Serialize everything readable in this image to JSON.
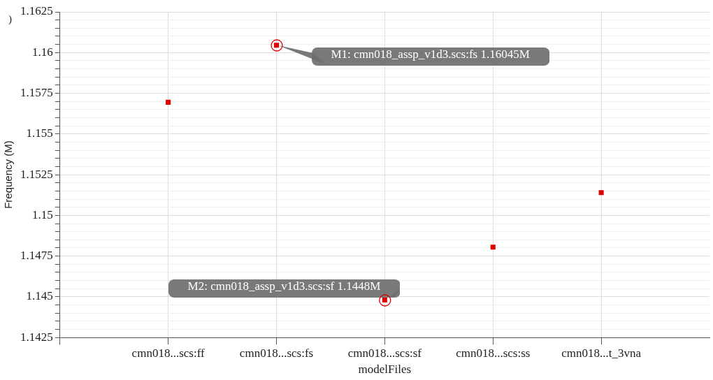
{
  "chart_data": {
    "type": "scatter",
    "xlabel": "modelFiles",
    "ylabel": "Frequency (M)",
    "categories": [
      "cmn018...scs:ff",
      "cmn018...scs:fs",
      "cmn018...scs:sf",
      "cmn018...scs:ss",
      "cmn018...t_3vna"
    ],
    "series": [
      {
        "color": "#e00000",
        "values": [
          1.15695,
          1.16045,
          1.1448,
          1.14805,
          1.1514
        ]
      }
    ],
    "ylim": [
      1.1425,
      1.1625
    ],
    "yticks": [
      1.1425,
      {
        "value": 1.143,
        "label": null
      },
      {
        "value": 1.1435,
        "label": null
      },
      {
        "value": 1.144,
        "label": null
      },
      {
        "value": 1.1445,
        "label": null
      },
      1.145,
      {
        "value": 1.1455,
        "label": null
      },
      {
        "value": 1.146,
        "label": null
      },
      {
        "value": 1.1465,
        "label": null
      },
      {
        "value": 1.147,
        "label": null
      },
      1.1475,
      {
        "value": 1.148,
        "label": null
      },
      {
        "value": 1.1485,
        "label": null
      },
      {
        "value": 1.149,
        "label": null
      },
      {
        "value": 1.1495,
        "label": null
      },
      1.15,
      {
        "value": 1.1505,
        "label": null
      },
      {
        "value": 1.151,
        "label": null
      },
      {
        "value": 1.1515,
        "label": null
      },
      {
        "value": 1.152,
        "label": null
      },
      1.1525,
      {
        "value": 1.153,
        "label": null
      },
      {
        "value": 1.1535,
        "label": null
      },
      {
        "value": 1.154,
        "label": null
      },
      {
        "value": 1.1545,
        "label": null
      },
      1.155,
      {
        "value": 1.1555,
        "label": null
      },
      {
        "value": 1.156,
        "label": null
      },
      {
        "value": 1.1565,
        "label": null
      },
      {
        "value": 1.157,
        "label": null
      },
      1.1575,
      {
        "value": 1.158,
        "label": null
      },
      {
        "value": 1.1585,
        "label": null
      },
      {
        "value": 1.159,
        "label": null
      },
      {
        "value": 1.1595,
        "label": null
      },
      1.16,
      {
        "value": 1.1605,
        "label": null
      },
      {
        "value": 1.161,
        "label": null
      },
      {
        "value": 1.1615,
        "label": null
      },
      {
        "value": 1.162,
        "label": null
      },
      1.1625
    ],
    "grid": true,
    "legend": false,
    "marker": "square",
    "annotations": [
      ")",
      {
        "text": "M1: cmn018_assp_v1d3.scs:fs 1.16045M",
        "x": "cmn018...scs:fs",
        "y": 1.16045
      },
      {
        "text": "M2: cmn018_assp_v1d3.scs:sf 1.1448M",
        "x": "cmn018...scs:sf",
        "y": 1.1448
      }
    ]
  }
}
